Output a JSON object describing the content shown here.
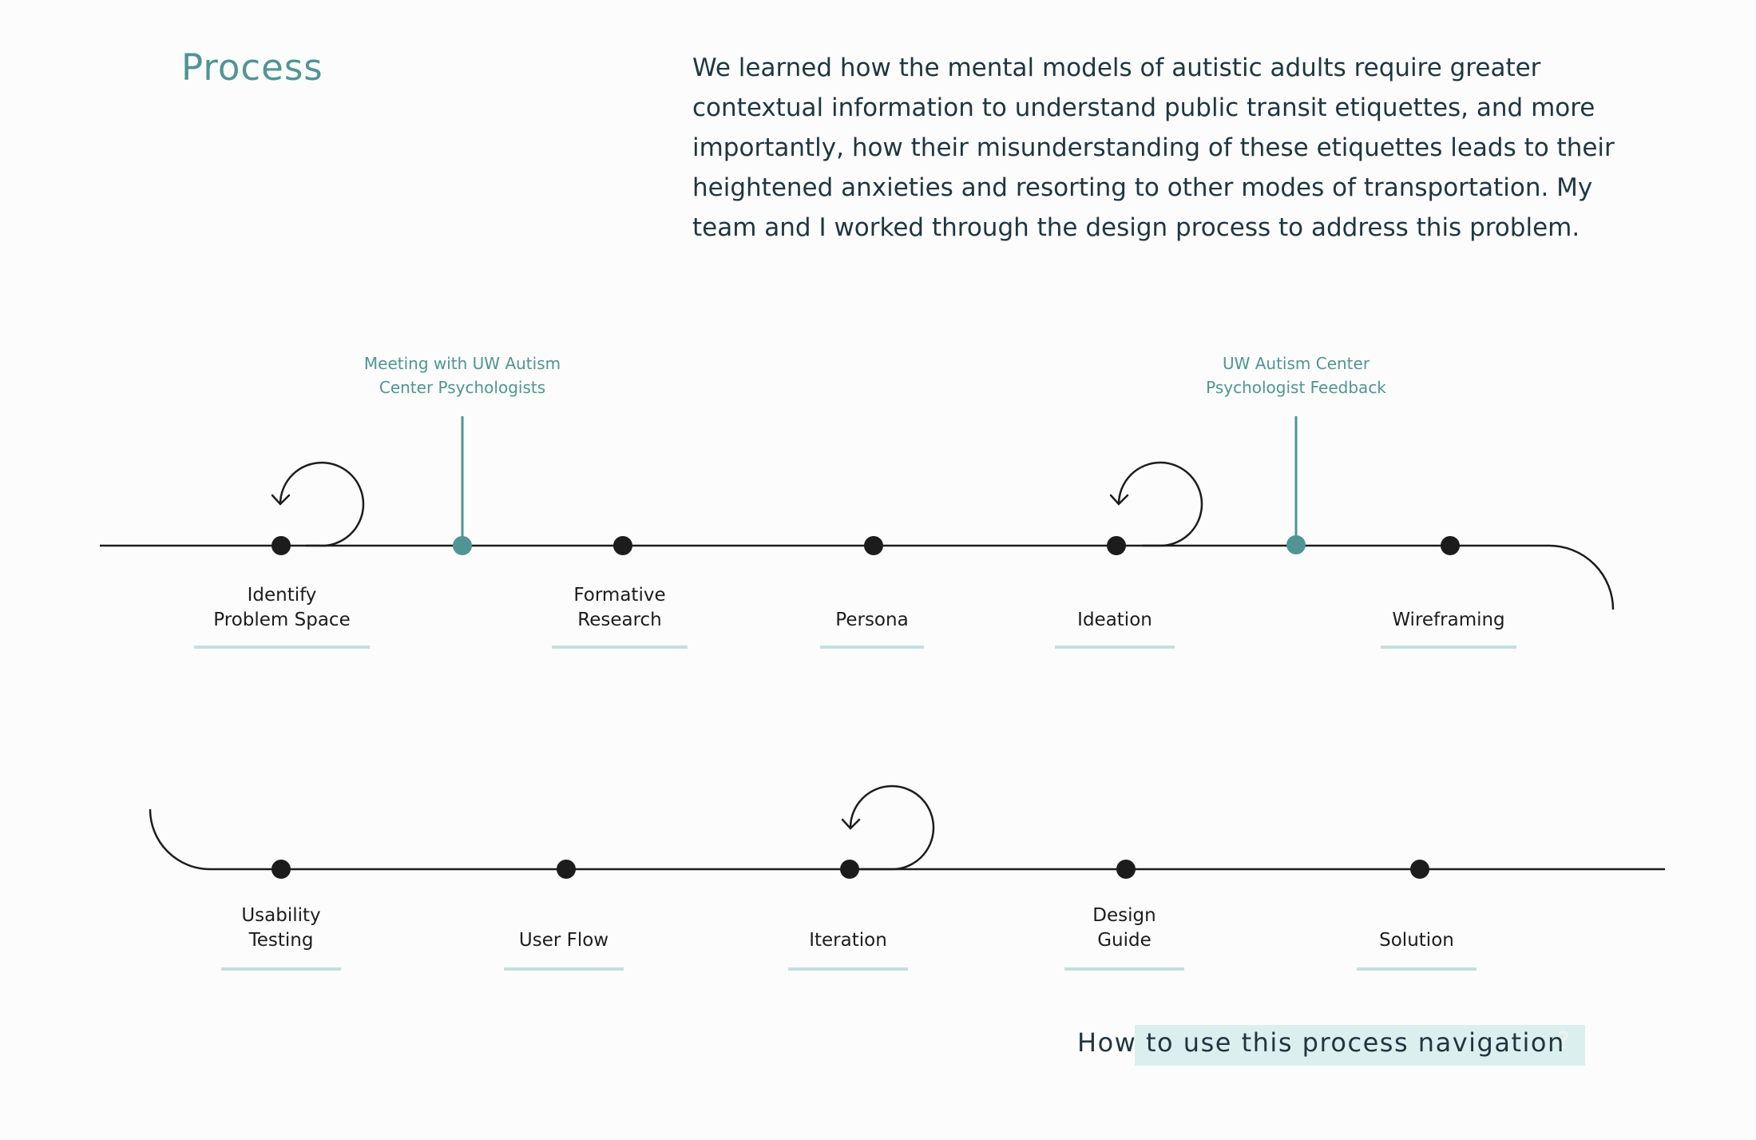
{
  "header": {
    "title": "Process",
    "intro": "We learned how the mental models of autistic adults require greater contextual information to understand public transit etiquettes, and more importantly, how their misunderstanding of these etiquettes leads to their heightened anxieties and resorting to other modes of transportation. My team and I worked through the design process to address this problem."
  },
  "steps": [
    {
      "label": "Identify\nProblem Space"
    },
    {
      "label": "Formative\nResearch"
    },
    {
      "label": "Persona"
    },
    {
      "label": "Ideation"
    },
    {
      "label": "Wireframing"
    },
    {
      "label": "Usability\nTesting"
    },
    {
      "label": "User Flow"
    },
    {
      "label": "Iteration"
    },
    {
      "label": "Design\nGuide"
    },
    {
      "label": "Solution"
    }
  ],
  "milestones": [
    {
      "label": "Meeting with UW Autism\nCenter Psychologists"
    },
    {
      "label": "UW Autism Center\nPsychologist Feedback"
    }
  ],
  "help": {
    "label": "How to use this process navigation",
    "icon": "?"
  },
  "colors": {
    "accent": "#4f9593",
    "node": "#1c1c1c",
    "underline": "#c3dfdf",
    "help_background": "#dcefef",
    "text": "#1f3640"
  }
}
